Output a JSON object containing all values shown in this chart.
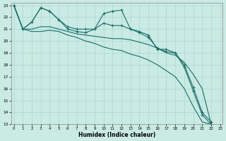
{
  "xlabel": "Humidex (Indice chaleur)",
  "xlim": [
    -0.3,
    23.3
  ],
  "ylim": [
    13,
    23.2
  ],
  "yticks": [
    13,
    14,
    15,
    16,
    17,
    18,
    19,
    20,
    21,
    22,
    23
  ],
  "xticks": [
    0,
    1,
    2,
    3,
    4,
    5,
    6,
    7,
    8,
    9,
    10,
    11,
    12,
    13,
    14,
    15,
    16,
    17,
    18,
    19,
    20,
    21,
    22,
    23
  ],
  "bg_color": "#caeae4",
  "grid_color": "#a8d8d0",
  "line_color": "#1a6e68",
  "line1_y": [
    23.0,
    21.0,
    21.6,
    22.8,
    22.5,
    21.8,
    21.2,
    21.0,
    21.0,
    21.0,
    22.3,
    22.5,
    22.6,
    21.0,
    20.8,
    20.5,
    19.3,
    19.3,
    19.0,
    18.0,
    16.1,
    14.0,
    13.2
  ],
  "line2_y": [
    23.0,
    21.0,
    21.6,
    22.8,
    22.5,
    21.8,
    21.0,
    20.8,
    20.7,
    21.0,
    21.5,
    21.3,
    21.3,
    21.0,
    20.7,
    20.3,
    19.4,
    19.1,
    19.0,
    17.8,
    15.8,
    13.8,
    13.0
  ],
  "line3_y": [
    23.0,
    21.0,
    21.0,
    21.2,
    21.2,
    21.0,
    20.8,
    20.6,
    20.5,
    20.4,
    20.3,
    20.2,
    20.2,
    20.1,
    19.9,
    19.7,
    19.4,
    19.0,
    18.8,
    18.2,
    17.2,
    16.0,
    13.0
  ],
  "line4_y": [
    23.0,
    21.0,
    20.8,
    20.8,
    20.9,
    20.8,
    20.5,
    20.3,
    20.0,
    19.8,
    19.5,
    19.3,
    19.2,
    18.9,
    18.7,
    18.4,
    18.0,
    17.5,
    17.0,
    16.0,
    14.5,
    13.2,
    13.0
  ]
}
